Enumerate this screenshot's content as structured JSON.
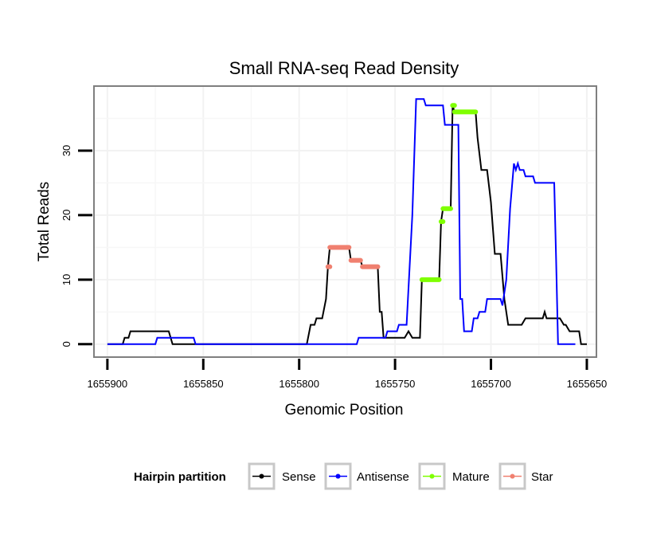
{
  "chart_data": {
    "type": "line",
    "title": "Small RNA-seq Read Density",
    "xlabel": "Genomic Position",
    "ylabel": "Total Reads",
    "x_reversed": true,
    "xlim": [
      1655907,
      1655645
    ],
    "ylim": [
      -2,
      40
    ],
    "x_ticks": [
      1655900,
      1655850,
      1655800,
      1655750,
      1655700,
      1655650
    ],
    "x_tick_labels": [
      "1655900",
      "1655850",
      "1655800",
      "1655750",
      "1655700",
      "1655650"
    ],
    "y_ticks": [
      0,
      10,
      20,
      30
    ],
    "y_tick_labels": [
      "0",
      "10",
      "20",
      "30"
    ],
    "grid": true,
    "legend": {
      "title": "Hairpin partition",
      "position": "bottom",
      "entries": [
        {
          "label": "Sense",
          "color": "#000000"
        },
        {
          "label": "Antisense",
          "color": "#0000ff"
        },
        {
          "label": "Mature",
          "color": "#7fff00"
        },
        {
          "label": "Star",
          "color": "#f08070"
        }
      ]
    },
    "series": [
      {
        "name": "Sense",
        "color": "#000000",
        "kind": "line",
        "points": [
          [
            1655900,
            0
          ],
          [
            1655892,
            0
          ],
          [
            1655891,
            1
          ],
          [
            1655889,
            1
          ],
          [
            1655888,
            2
          ],
          [
            1655880,
            2
          ],
          [
            1655870,
            2
          ],
          [
            1655868,
            2
          ],
          [
            1655866,
            0
          ],
          [
            1655850,
            0
          ],
          [
            1655830,
            0
          ],
          [
            1655810,
            0
          ],
          [
            1655796,
            0
          ],
          [
            1655794,
            3
          ],
          [
            1655792,
            3
          ],
          [
            1655791,
            4
          ],
          [
            1655788,
            4
          ],
          [
            1655786,
            7
          ],
          [
            1655785,
            12
          ],
          [
            1655784,
            15
          ],
          [
            1655774,
            15
          ],
          [
            1655773,
            13
          ],
          [
            1655768,
            13
          ],
          [
            1655767,
            12
          ],
          [
            1655759,
            12
          ],
          [
            1655758,
            5
          ],
          [
            1655757,
            5
          ],
          [
            1655756,
            1
          ],
          [
            1655745,
            1
          ],
          [
            1655743,
            2
          ],
          [
            1655741,
            1
          ],
          [
            1655737,
            1
          ],
          [
            1655736,
            10
          ],
          [
            1655727,
            10
          ],
          [
            1655726,
            19
          ],
          [
            1655725,
            21
          ],
          [
            1655721,
            21
          ],
          [
            1655720,
            37
          ],
          [
            1655719,
            36
          ],
          [
            1655708,
            36
          ],
          [
            1655707,
            32
          ],
          [
            1655705,
            27
          ],
          [
            1655702,
            27
          ],
          [
            1655700,
            22
          ],
          [
            1655698,
            14
          ],
          [
            1655695,
            14
          ],
          [
            1655693,
            7
          ],
          [
            1655691,
            3
          ],
          [
            1655684,
            3
          ],
          [
            1655682,
            4
          ],
          [
            1655673,
            4
          ],
          [
            1655672,
            5
          ],
          [
            1655671,
            4
          ],
          [
            1655664,
            4
          ],
          [
            1655662,
            3
          ],
          [
            1655661,
            3
          ],
          [
            1655659,
            2
          ],
          [
            1655654,
            2
          ],
          [
            1655653,
            0
          ],
          [
            1655650,
            0
          ]
        ]
      },
      {
        "name": "Antisense",
        "color": "#0000ff",
        "kind": "line",
        "points": [
          [
            1655900,
            0
          ],
          [
            1655875,
            0
          ],
          [
            1655874,
            1
          ],
          [
            1655855,
            1
          ],
          [
            1655854,
            0
          ],
          [
            1655810,
            0
          ],
          [
            1655790,
            0
          ],
          [
            1655770,
            0
          ],
          [
            1655769,
            1
          ],
          [
            1655755,
            1
          ],
          [
            1655754,
            2
          ],
          [
            1655749,
            2
          ],
          [
            1655748,
            3
          ],
          [
            1655744,
            3
          ],
          [
            1655741,
            20
          ],
          [
            1655739,
            38
          ],
          [
            1655735,
            38
          ],
          [
            1655734,
            37
          ],
          [
            1655725,
            37
          ],
          [
            1655724,
            34
          ],
          [
            1655717,
            34
          ],
          [
            1655716,
            7
          ],
          [
            1655715,
            7
          ],
          [
            1655714,
            2
          ],
          [
            1655710,
            2
          ],
          [
            1655709,
            4
          ],
          [
            1655707,
            4
          ],
          [
            1655706,
            5
          ],
          [
            1655703,
            5
          ],
          [
            1655702,
            7
          ],
          [
            1655695,
            7
          ],
          [
            1655694,
            6
          ],
          [
            1655692,
            10
          ],
          [
            1655690,
            21
          ],
          [
            1655688,
            28
          ],
          [
            1655687,
            27
          ],
          [
            1655686,
            28
          ],
          [
            1655685,
            27
          ],
          [
            1655683,
            27
          ],
          [
            1655682,
            26
          ],
          [
            1655678,
            26
          ],
          [
            1655677,
            25
          ],
          [
            1655667,
            25
          ],
          [
            1655666,
            13
          ],
          [
            1655665,
            0
          ],
          [
            1655656,
            0
          ]
        ]
      },
      {
        "name": "Mature",
        "color": "#7fff00",
        "kind": "segments",
        "segments": [
          [
            [
              1655736,
              10
            ],
            [
              1655727,
              10
            ]
          ],
          [
            [
              1655726,
              19
            ],
            [
              1655725,
              19
            ]
          ],
          [
            [
              1655725,
              21
            ],
            [
              1655721,
              21
            ]
          ],
          [
            [
              1655720,
              37
            ],
            [
              1655719,
              37
            ]
          ],
          [
            [
              1655719,
              36
            ],
            [
              1655708,
              36
            ]
          ]
        ]
      },
      {
        "name": "Star",
        "color": "#f08070",
        "kind": "segments",
        "segments": [
          [
            [
              1655785,
              12
            ],
            [
              1655784,
              12
            ]
          ],
          [
            [
              1655784,
              15
            ],
            [
              1655774,
              15
            ]
          ],
          [
            [
              1655773,
              13
            ],
            [
              1655768,
              13
            ]
          ],
          [
            [
              1655767,
              12
            ],
            [
              1655759,
              12
            ]
          ]
        ]
      }
    ]
  }
}
